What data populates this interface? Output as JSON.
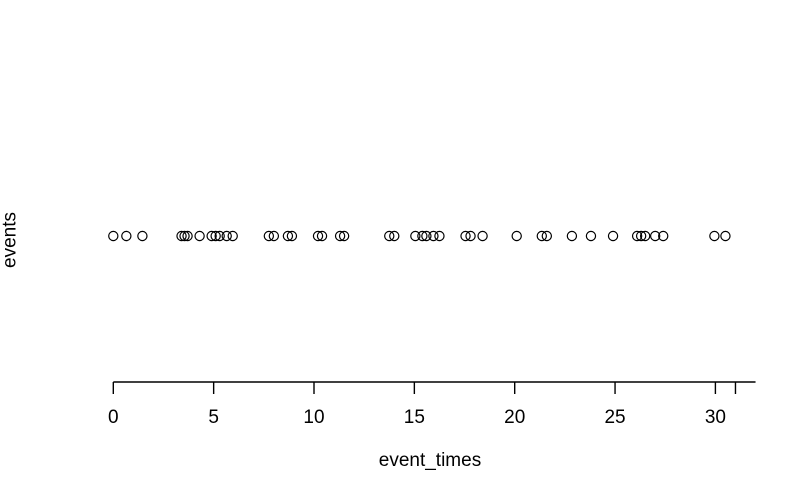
{
  "figure": {
    "background_color": "#ffffff",
    "foreground_color": "#000000",
    "xlabel": "event_times",
    "ylabel": "events"
  },
  "chart_data": {
    "type": "scatter",
    "subtype": "stripchart-one-dimensional",
    "title": "",
    "xlabel": "event_times",
    "ylabel": "events",
    "legend": null,
    "grid": false,
    "marker": "open-circle",
    "marker_color": "#000000",
    "xlim": [
      0,
      32
    ],
    "x_tick_values": [
      0,
      5,
      10,
      15,
      20,
      25,
      30
    ],
    "x_tick_labels": [
      "0",
      "5",
      "10",
      "15",
      "20",
      "25",
      "30"
    ],
    "extra_unlabeled_tick_value": 31,
    "series_name": "events",
    "x": [
      0.0,
      0.65,
      1.45,
      3.4,
      3.55,
      3.7,
      4.3,
      4.9,
      5.1,
      5.3,
      5.65,
      5.95,
      7.75,
      8.0,
      8.7,
      8.9,
      10.2,
      10.4,
      11.3,
      11.5,
      13.75,
      14.0,
      15.05,
      15.4,
      15.6,
      15.95,
      16.25,
      17.55,
      17.8,
      18.4,
      20.1,
      21.35,
      21.6,
      22.85,
      23.8,
      24.9,
      26.1,
      26.3,
      26.5,
      27.0,
      27.4,
      29.95,
      30.5
    ]
  }
}
